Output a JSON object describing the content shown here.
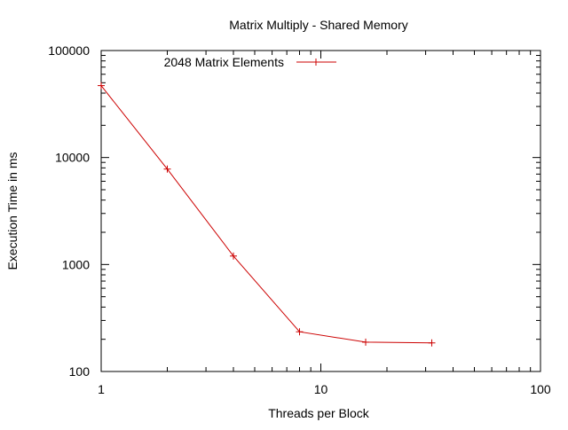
{
  "chart_data": {
    "type": "line",
    "title": "Matrix Multiply - Shared Memory",
    "xlabel": "Threads per Block",
    "ylabel": "Execution Time in ms",
    "x_scale": "log",
    "y_scale": "log",
    "xlim": [
      1,
      100
    ],
    "ylim": [
      100,
      100000
    ],
    "x_ticks": [
      1,
      10,
      100
    ],
    "x_tick_labels": [
      "1",
      "10",
      "100"
    ],
    "y_ticks": [
      100,
      1000,
      10000,
      100000
    ],
    "y_tick_labels": [
      "100",
      "1000",
      "10000",
      "100000"
    ],
    "grid": false,
    "legend_position": "top-left",
    "series": [
      {
        "name": "2048 Matrix Elements",
        "color": "#cc0000",
        "marker": "plus",
        "x": [
          1,
          2,
          4,
          8,
          16,
          32
        ],
        "y": [
          47000,
          7800,
          1200,
          235,
          188,
          185
        ]
      }
    ]
  }
}
